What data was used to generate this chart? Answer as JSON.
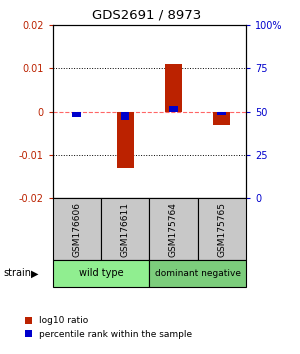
{
  "title": "GDS2691 / 8973",
  "samples": [
    "GSM176606",
    "GSM176611",
    "GSM175764",
    "GSM175765"
  ],
  "log10_ratio": [
    0.0,
    -0.013,
    0.011,
    -0.003
  ],
  "percentile_rank": [
    47,
    45,
    53,
    48
  ],
  "ylim": [
    -0.02,
    0.02
  ],
  "yticks_left": [
    -0.02,
    -0.01,
    0,
    0.01,
    0.02
  ],
  "yticks_right": [
    0,
    25,
    50,
    75,
    100
  ],
  "group_labels": [
    "wild type",
    "dominant negative"
  ],
  "group_colors": [
    "#90EE90",
    "#7CCD7C"
  ],
  "bar_width": 0.35,
  "blue_bar_width": 0.18,
  "red_color": "#BB2200",
  "blue_color": "#0000CC",
  "zero_line_color": "#FF6666",
  "sample_box_color": "#C8C8C8",
  "legend_red_label": "log10 ratio",
  "legend_blue_label": "percentile rank within the sample"
}
